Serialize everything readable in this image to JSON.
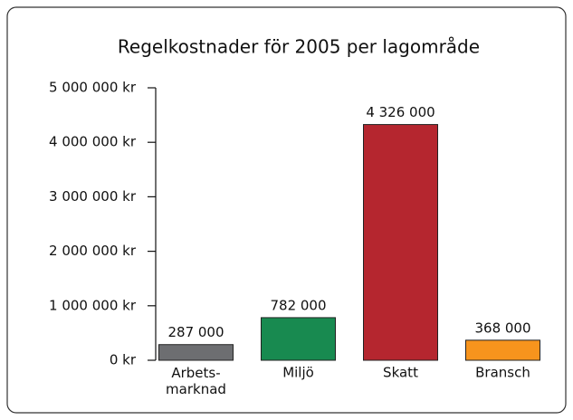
{
  "chart_data": {
    "type": "bar",
    "title": "Regelkostnader för 2005 per lagområde",
    "categories": [
      "Arbets-\nmarknad",
      "Miljö",
      "Skatt",
      "Bransch"
    ],
    "series": [
      {
        "colors": [
          "#6d6e71",
          "#188a50",
          "#b5262f",
          "#f7941d"
        ],
        "values": [
          287000,
          782000,
          4326000,
          368000
        ],
        "value_labels": [
          "287 000",
          "782 000",
          "4 326 000",
          "368 000"
        ]
      }
    ],
    "ylim": [
      0,
      5000000
    ],
    "yticks": [
      {
        "value": 0,
        "label": "0 kr"
      },
      {
        "value": 1000000,
        "label": "1 000 000 kr"
      },
      {
        "value": 2000000,
        "label": "2 000 000 kr"
      },
      {
        "value": 3000000,
        "label": "3 000 000 kr"
      },
      {
        "value": 4000000,
        "label": "4 000 000 kr"
      },
      {
        "value": 5000000,
        "label": "5 000 000 kr"
      }
    ]
  }
}
